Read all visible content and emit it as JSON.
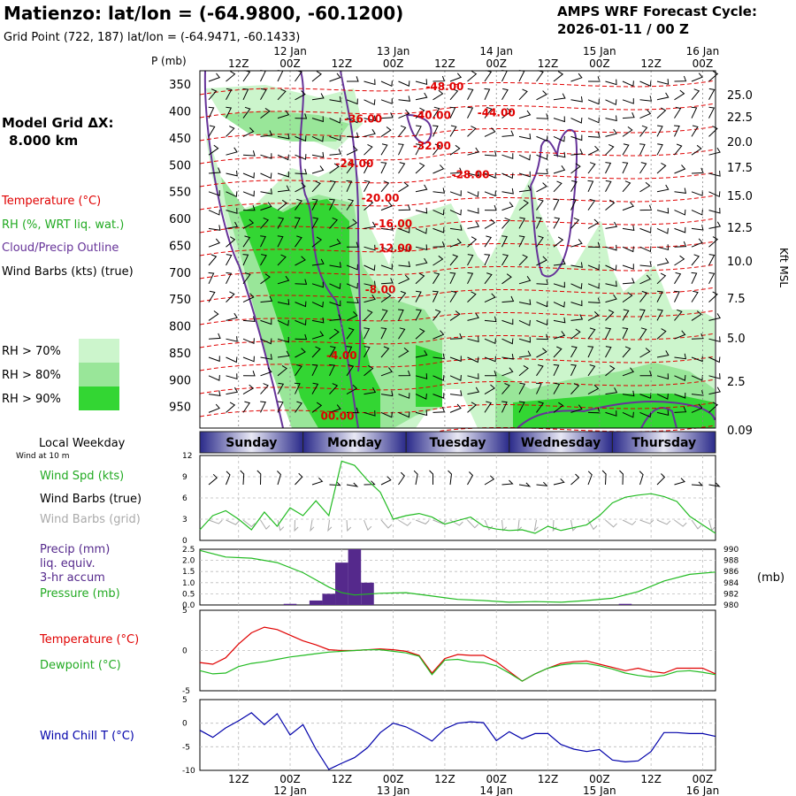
{
  "header": {
    "title": "Matienzo:  lat/lon = (-64.9800, -60.1200)",
    "grid_point": "Grid Point (722, 187) lat/lon = (-64.9471, -60.1433)",
    "cycle_line1": "AMPS WRF Forecast Cycle:",
    "cycle_line2": "2026-01-11 / 00  Z",
    "model_grid_label": "Model Grid ΔX:",
    "model_grid_value": "8.000 km"
  },
  "legend": {
    "temperature": "Temperature (°C)",
    "rh": "RH (%, WRT liq. wat.)",
    "cloud": "Cloud/Precip Outline",
    "wind": "Wind Barbs (kts) (true)",
    "rh70": "RH > 70%",
    "rh80": "RH > 80%",
    "rh90": "RH > 90%"
  },
  "colors": {
    "rh70": "#ccf5cc",
    "rh80": "#99e699",
    "rh90": "#33d633",
    "temp": "#e00000",
    "cloud": "#663399",
    "wind": "#000000",
    "wind_grid": "#aaaaaa",
    "precip": "#55298c",
    "pressure": "#22bb22",
    "dewpoint": "#22bb22",
    "windchill": "#0000aa",
    "grid": "#bbbbbb",
    "day_bar": "#2a2a8a"
  },
  "time_axis": {
    "ticks": [
      "12Z",
      "00Z",
      "12Z",
      "00Z",
      "12Z",
      "00Z",
      "12Z",
      "00Z",
      "12Z",
      "00Z"
    ],
    "dates": [
      "12 Jan",
      "13 Jan",
      "14 Jan",
      "15 Jan",
      "16 Jan"
    ]
  },
  "days": [
    "Sunday",
    "Monday",
    "Tuesday",
    "Wednesday",
    "Thursday"
  ],
  "panel_labels": {
    "pressure_axis": "P (mb)",
    "kft_axis": "Kft MSL",
    "local_weekday": "Local Weekday",
    "wind_at": "Wind at 10 m",
    "wind_spd": "Wind Spd (kts)",
    "wind_barbs_true": "Wind Barbs (true)",
    "wind_barbs_grid": "Wind Barbs (grid)",
    "precip_1": "Precip (mm)",
    "precip_2": "liq. equiv.",
    "precip_3": "3-hr accum",
    "pressure": "Pressure (mb)",
    "pressure_unit": "(mb)",
    "temperature": "Temperature (°C)",
    "dewpoint": "Dewpoint (°C)",
    "windchill": "Wind Chill T (°C)"
  },
  "chart_data": [
    {
      "type": "heatmap",
      "y_axis": {
        "label": "P (mb)",
        "ticks": [
          350,
          400,
          450,
          500,
          550,
          600,
          650,
          700,
          750,
          800,
          850,
          900,
          950
        ]
      },
      "y2_axis": {
        "label": "Kft MSL",
        "ticks": [
          "25.0",
          "22.5",
          "20.0",
          "17.5",
          "15.0",
          "12.5",
          "10.0",
          "7.5",
          "5.0",
          "2.5",
          "0.09"
        ]
      },
      "x_range_hours": [
        0,
        120
      ],
      "temperature_contour_labels": [
        {
          "label": "-48.00",
          "t": 57,
          "p": 355
        },
        {
          "label": "-44.00",
          "t": 69,
          "p": 403
        },
        {
          "label": "-40.00",
          "t": 54,
          "p": 408
        },
        {
          "label": "-36.00",
          "t": 38,
          "p": 415
        },
        {
          "label": "-32.00",
          "t": 54,
          "p": 465
        },
        {
          "label": "-28.00",
          "t": 63,
          "p": 518
        },
        {
          "label": "-24.00",
          "t": 36,
          "p": 498
        },
        {
          "label": "-20.00",
          "t": 42,
          "p": 562
        },
        {
          "label": "-16.00",
          "t": 45,
          "p": 610
        },
        {
          "label": "-12.00",
          "t": 45,
          "p": 655
        },
        {
          "label": "-8.00",
          "t": 42,
          "p": 732
        },
        {
          "label": "-4.00",
          "t": 33,
          "p": 855
        },
        {
          "label": "00.00",
          "t": 32,
          "p": 968
        }
      ]
    },
    {
      "type": "line",
      "title": "Wind Spd (kts)",
      "ylim": [
        0,
        12
      ],
      "yticks": [
        0,
        3,
        6,
        9,
        12
      ],
      "x": [
        0,
        3,
        6,
        9,
        12,
        15,
        18,
        21,
        24,
        27,
        30,
        33,
        36,
        39,
        42,
        45,
        48,
        51,
        54,
        57,
        60,
        63,
        66,
        69,
        72,
        75,
        78,
        81,
        84,
        87,
        90,
        93,
        96,
        99,
        102,
        105,
        108,
        111,
        114,
        117,
        120
      ],
      "series": [
        {
          "values": [
            1.5,
            3.5,
            4.2,
            3.0,
            1.5,
            4.0,
            2.0,
            4.6,
            3.5,
            5.6,
            3.5,
            11.2,
            10.6,
            8.5,
            6.8,
            3.0,
            3.5,
            3.8,
            3.3,
            2.3,
            2.8,
            3.3,
            2.0,
            1.6,
            1.4,
            1.5,
            1.0,
            2.0,
            1.4,
            1.8,
            2.2,
            3.5,
            5.3,
            6.1,
            6.4,
            6.6,
            6.2,
            5.5,
            3.4,
            2.2,
            1.0
          ]
        }
      ]
    },
    {
      "type": "bar",
      "title": "Precip (mm)",
      "ylim": [
        0,
        2.5
      ],
      "yticks": [
        "0.0",
        "0.5",
        "1.0",
        "1.5",
        "2.0",
        "2.5"
      ],
      "x": [
        21,
        27,
        30,
        33,
        36,
        99
      ],
      "values": [
        0.05,
        0.2,
        0.5,
        1.9,
        2.5,
        0.05
      ],
      "extra": [
        {
          "x": 39,
          "value": 1.0
        }
      ]
    },
    {
      "type": "line",
      "title": "Pressure (mb)",
      "ylim": [
        980,
        990
      ],
      "yticks": [
        980,
        982,
        984,
        986,
        988,
        990
      ],
      "x": [
        0,
        6,
        12,
        18,
        24,
        27,
        30,
        33,
        36,
        42,
        48,
        54,
        60,
        66,
        72,
        78,
        84,
        90,
        96,
        102,
        108,
        114,
        120
      ],
      "series": [
        {
          "values": [
            989.8,
            988.6,
            988.4,
            987.6,
            985.8,
            984.5,
            983.2,
            982.2,
            981.8,
            982.1,
            982.2,
            981.6,
            981.0,
            980.8,
            980.5,
            980.6,
            980.5,
            980.8,
            981.2,
            982.4,
            984.3,
            985.5,
            985.9
          ]
        }
      ]
    },
    {
      "type": "line",
      "title": "Temperature (°C)",
      "ylim": [
        -5,
        5
      ],
      "yticks": [
        -5,
        0,
        5
      ],
      "x": [
        0,
        3,
        6,
        9,
        12,
        15,
        18,
        21,
        24,
        27,
        30,
        33,
        36,
        39,
        42,
        45,
        48,
        51,
        54,
        57,
        60,
        63,
        66,
        69,
        72,
        75,
        78,
        81,
        84,
        87,
        90,
        93,
        96,
        99,
        102,
        105,
        108,
        111,
        114,
        117,
        120
      ],
      "series": [
        {
          "name": "Temperature (°C)",
          "values": [
            -1.5,
            -1.7,
            -0.9,
            0.8,
            2.2,
            2.9,
            2.6,
            1.9,
            1.2,
            0.7,
            0.1,
            0.0,
            0.0,
            0.1,
            0.2,
            0.1,
            -0.1,
            -0.6,
            -2.8,
            -1.0,
            -0.5,
            -0.6,
            -0.6,
            -1.4,
            -2.6,
            -3.8,
            -2.9,
            -2.2,
            -1.6,
            -1.4,
            -1.3,
            -1.7,
            -2.1,
            -2.5,
            -2.2,
            -2.6,
            -2.8,
            -2.2,
            -2.2,
            -2.2,
            -2.9
          ]
        },
        {
          "name": "Dewpoint (°C)",
          "values": [
            -2.5,
            -2.9,
            -2.8,
            -2.0,
            -1.6,
            -1.4,
            -1.1,
            -0.8,
            -0.6,
            -0.4,
            -0.2,
            -0.1,
            0.0,
            0.1,
            0.1,
            -0.1,
            -0.3,
            -0.7,
            -3.0,
            -1.2,
            -1.1,
            -1.4,
            -1.5,
            -1.9,
            -2.8,
            -3.8,
            -2.9,
            -2.2,
            -1.8,
            -1.6,
            -1.6,
            -1.9,
            -2.3,
            -2.8,
            -3.1,
            -3.3,
            -3.1,
            -2.6,
            -2.5,
            -2.7,
            -3.0
          ]
        }
      ]
    },
    {
      "type": "line",
      "title": "Wind Chill T (°C)",
      "ylim": [
        -10,
        5
      ],
      "yticks": [
        -10,
        -5,
        0,
        5
      ],
      "x": [
        0,
        3,
        6,
        9,
        12,
        15,
        18,
        21,
        24,
        27,
        30,
        33,
        36,
        39,
        42,
        45,
        48,
        51,
        54,
        57,
        60,
        63,
        66,
        69,
        72,
        75,
        78,
        81,
        84,
        87,
        90,
        93,
        96,
        99,
        102,
        105,
        108,
        111,
        114,
        117,
        120
      ],
      "series": [
        {
          "values": [
            -1.5,
            -3.0,
            -1.0,
            0.5,
            2.2,
            -0.3,
            2.0,
            -2.5,
            -0.3,
            -5.5,
            -9.8,
            -8.5,
            -7.3,
            -5.2,
            -2.0,
            0.0,
            -0.8,
            -2.2,
            -3.8,
            -1.2,
            0.0,
            0.3,
            0.1,
            -3.7,
            -1.8,
            -3.3,
            -2.2,
            -2.2,
            -4.5,
            -5.5,
            -6.0,
            -5.6,
            -7.8,
            -8.2,
            -8.0,
            -6.0,
            -2.0,
            -2.0,
            -2.2,
            -2.2,
            -2.8
          ]
        }
      ]
    }
  ]
}
